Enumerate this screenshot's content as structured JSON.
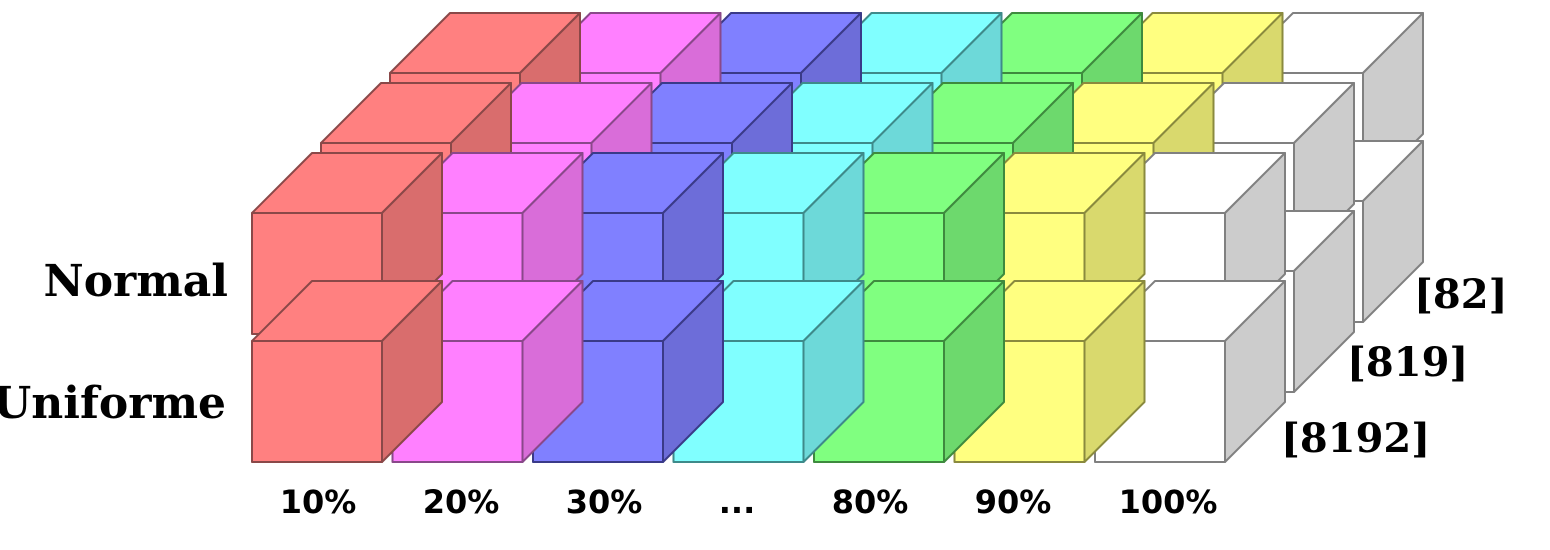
{
  "rows": [
    {
      "label": "Normal"
    },
    {
      "label": "Uniforme"
    }
  ],
  "columns": [
    {
      "label": "10%",
      "face": "#ff8080",
      "side": "#d96d6d",
      "edge": "#8a4848"
    },
    {
      "label": "20%",
      "face": "#ff80ff",
      "side": "#d96dd9",
      "edge": "#8a488a"
    },
    {
      "label": "30%",
      "face": "#8080ff",
      "side": "#6d6dd9",
      "edge": "#3a3a88"
    },
    {
      "label": "...",
      "face": "#80ffff",
      "side": "#6dd9d9",
      "edge": "#3e8a8a"
    },
    {
      "label": "80%",
      "face": "#80ff80",
      "side": "#6dd96d",
      "edge": "#3e8a3e"
    },
    {
      "label": "90%",
      "face": "#ffff80",
      "side": "#d9d96d",
      "edge": "#8a8a3e"
    },
    {
      "label": "100%",
      "face": "#ffffff",
      "side": "#cccccc",
      "edge": "#808080"
    }
  ],
  "depths": [
    {
      "label": "[8192]"
    },
    {
      "label": "[819]"
    },
    {
      "label": "[82]"
    }
  ]
}
